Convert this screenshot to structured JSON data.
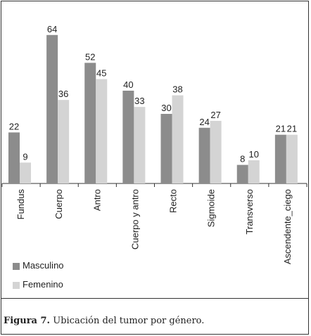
{
  "caption": {
    "label": "Figura 7.",
    "text": "Ubicación del tumor por género."
  },
  "legend": [
    {
      "name": "Masculino",
      "color": "#8c8c8c"
    },
    {
      "name": "Femenino",
      "color": "#d4d4d4"
    }
  ],
  "chart_data": {
    "type": "bar",
    "categories": [
      "Fundus",
      "Cuerpo",
      "Antro",
      "Cuerpo y antro",
      "Recto",
      "Sigmoide",
      "Transverso",
      "Ascendente_ciego"
    ],
    "series": [
      {
        "name": "Masculino",
        "color": "#8c8c8c",
        "values": [
          22,
          64,
          52,
          40,
          30,
          24,
          8,
          21
        ]
      },
      {
        "name": "Femenino",
        "color": "#d4d4d4",
        "values": [
          9,
          36,
          45,
          33,
          38,
          27,
          10,
          21
        ]
      }
    ],
    "ylim": [
      0,
      70
    ],
    "grid": false,
    "legend_position": "bottom-left",
    "data_labels": true
  }
}
